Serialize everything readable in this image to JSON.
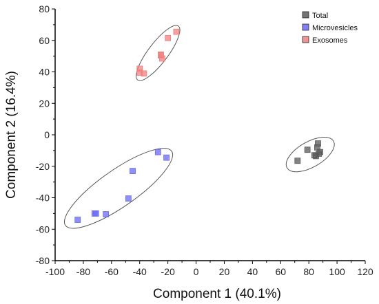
{
  "chart_data": {
    "type": "scatter",
    "title": "",
    "xlabel": "Component 1 (40.1%)",
    "ylabel": "Component 2 (16.4%)",
    "xlim": [
      -100,
      120
    ],
    "ylim": [
      -80,
      80
    ],
    "xticks": [
      -100,
      -80,
      -60,
      -40,
      -20,
      0,
      20,
      40,
      60,
      80,
      100,
      120
    ],
    "yticks": [
      -80,
      -60,
      -40,
      -20,
      0,
      20,
      40,
      60,
      80
    ],
    "grid": false,
    "legend_position": "top-right",
    "series": [
      {
        "name": "Total",
        "color": "#5a5a5a",
        "points": [
          [
            72,
            -16.5
          ],
          [
            79,
            -9.5
          ],
          [
            84,
            -13
          ],
          [
            85,
            -13.5
          ],
          [
            86,
            -8
          ],
          [
            86.5,
            -5.5
          ],
          [
            87,
            -12
          ],
          [
            88,
            -11
          ]
        ]
      },
      {
        "name": "Microvesicles",
        "color": "#6b6bf0",
        "points": [
          [
            -84,
            -54
          ],
          [
            -72,
            -50
          ],
          [
            -71,
            -50
          ],
          [
            -64,
            -50.5
          ],
          [
            -48,
            -40.5
          ],
          [
            -45,
            -23
          ],
          [
            -27,
            -11
          ],
          [
            -21,
            -14.5
          ]
        ]
      },
      {
        "name": "Exosomes",
        "color": "#f08080",
        "points": [
          [
            -40,
            42
          ],
          [
            -40,
            39.5
          ],
          [
            -37,
            39
          ],
          [
            -25,
            51
          ],
          [
            -25,
            50.5
          ],
          [
            -24,
            48.5
          ],
          [
            -20,
            61.5
          ],
          [
            -14,
            65.5
          ]
        ]
      }
    ],
    "ellipses": [
      {
        "group": "Total",
        "cx": 81,
        "cy": -12.5,
        "rx": 19,
        "ry": 9,
        "angle_deg": 30
      },
      {
        "group": "Microvesicles",
        "cx": -55,
        "cy": -34,
        "rx": 46,
        "ry": 13,
        "angle_deg": 35
      },
      {
        "group": "Exosomes",
        "cx": -27,
        "cy": 52,
        "rx": 24,
        "ry": 7,
        "angle_deg": 53
      }
    ]
  }
}
